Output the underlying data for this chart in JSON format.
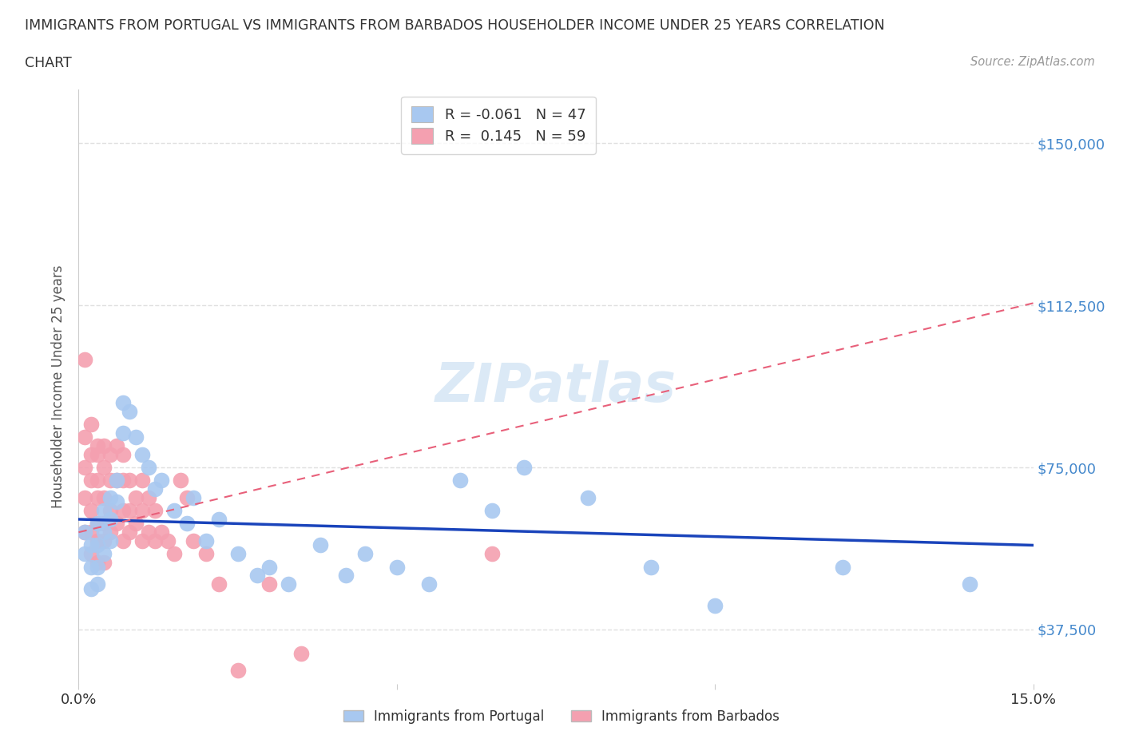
{
  "title_line1": "IMMIGRANTS FROM PORTUGAL VS IMMIGRANTS FROM BARBADOS HOUSEHOLDER INCOME UNDER 25 YEARS CORRELATION",
  "title_line2": "CHART",
  "source_text": "Source: ZipAtlas.com",
  "ylabel": "Householder Income Under 25 years",
  "xlim": [
    0.0,
    0.15
  ],
  "ylim": [
    25000,
    162500
  ],
  "yticks": [
    37500,
    75000,
    112500,
    150000
  ],
  "ytick_labels": [
    "$37,500",
    "$75,000",
    "$112,500",
    "$150,000"
  ],
  "background_color": "#ffffff",
  "grid_color": "#e0e0e0",
  "watermark": "ZIPatlas",
  "legend_R_portugal": "-0.061",
  "legend_N_portugal": "47",
  "legend_R_barbados": "0.145",
  "legend_N_barbados": "59",
  "portugal_color": "#a8c8f0",
  "barbados_color": "#f4a0b0",
  "portugal_line_color": "#1a44bb",
  "barbados_line_color": "#e8607a",
  "portugal_points_x": [
    0.001,
    0.001,
    0.002,
    0.002,
    0.002,
    0.003,
    0.003,
    0.003,
    0.003,
    0.004,
    0.004,
    0.004,
    0.005,
    0.005,
    0.005,
    0.006,
    0.006,
    0.007,
    0.007,
    0.008,
    0.009,
    0.01,
    0.011,
    0.012,
    0.013,
    0.015,
    0.017,
    0.018,
    0.02,
    0.022,
    0.025,
    0.028,
    0.03,
    0.033,
    0.038,
    0.042,
    0.045,
    0.05,
    0.055,
    0.06,
    0.065,
    0.07,
    0.08,
    0.09,
    0.1,
    0.12,
    0.14
  ],
  "portugal_points_y": [
    60000,
    55000,
    57000,
    52000,
    47000,
    62000,
    57000,
    52000,
    48000,
    65000,
    60000,
    55000,
    68000,
    63000,
    58000,
    72000,
    67000,
    90000,
    83000,
    88000,
    82000,
    78000,
    75000,
    70000,
    72000,
    65000,
    62000,
    68000,
    58000,
    63000,
    55000,
    50000,
    52000,
    48000,
    57000,
    50000,
    55000,
    52000,
    48000,
    72000,
    65000,
    75000,
    68000,
    52000,
    43000,
    52000,
    48000
  ],
  "barbados_points_x": [
    0.001,
    0.001,
    0.001,
    0.001,
    0.001,
    0.002,
    0.002,
    0.002,
    0.002,
    0.002,
    0.002,
    0.003,
    0.003,
    0.003,
    0.003,
    0.003,
    0.003,
    0.003,
    0.004,
    0.004,
    0.004,
    0.004,
    0.004,
    0.004,
    0.005,
    0.005,
    0.005,
    0.005,
    0.006,
    0.006,
    0.006,
    0.007,
    0.007,
    0.007,
    0.007,
    0.008,
    0.008,
    0.008,
    0.009,
    0.009,
    0.01,
    0.01,
    0.01,
    0.011,
    0.011,
    0.012,
    0.012,
    0.013,
    0.014,
    0.015,
    0.016,
    0.017,
    0.018,
    0.02,
    0.022,
    0.025,
    0.03,
    0.035,
    0.065
  ],
  "barbados_points_y": [
    100000,
    82000,
    75000,
    68000,
    60000,
    85000,
    78000,
    72000,
    65000,
    60000,
    55000,
    80000,
    78000,
    72000,
    68000,
    62000,
    58000,
    53000,
    80000,
    75000,
    68000,
    62000,
    58000,
    53000,
    78000,
    72000,
    65000,
    60000,
    80000,
    72000,
    62000,
    78000,
    72000,
    65000,
    58000,
    72000,
    65000,
    60000,
    68000,
    62000,
    72000,
    65000,
    58000,
    68000,
    60000,
    65000,
    58000,
    60000,
    58000,
    55000,
    72000,
    68000,
    58000,
    55000,
    48000,
    28000,
    48000,
    32000,
    55000
  ]
}
